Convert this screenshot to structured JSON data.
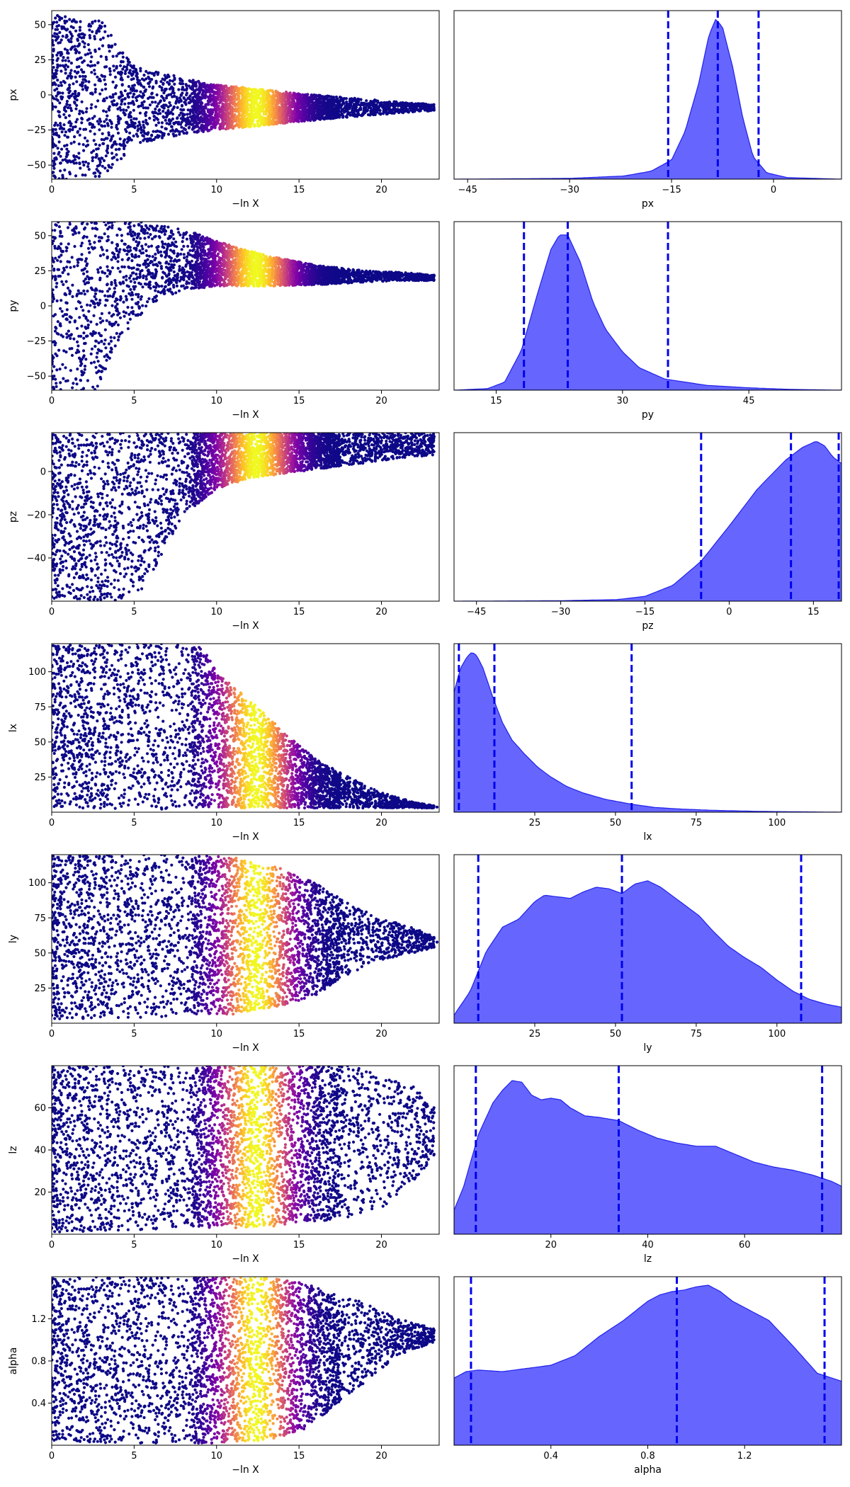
{
  "chart_data": [
    {
      "type": "scatter",
      "panel": "trace",
      "param": "px",
      "xlabel": "−ln X",
      "ylabel": "px",
      "xlim": [
        0,
        23.5
      ],
      "ylim": [
        -60,
        60
      ],
      "xticks": [
        0,
        5,
        10,
        15,
        20
      ],
      "yticks": [
        -50,
        -25,
        0,
        25,
        50
      ],
      "envelope": {
        "x": [
          0,
          3,
          5,
          8,
          10,
          12,
          15,
          18,
          21,
          23.5
        ],
        "half": [
          60,
          58,
          28,
          20,
          16,
          14,
          10,
          7,
          4,
          2
        ],
        "center": [
          -3,
          -5,
          -7,
          -8,
          -9,
          -9,
          -9,
          -9,
          -9,
          -9
        ]
      }
    },
    {
      "type": "area",
      "panel": "marginal",
      "param": "px",
      "xlabel": "px",
      "xlim": [
        -47,
        10
      ],
      "xticks": [
        -45,
        -30,
        -15,
        0
      ],
      "quantiles": [
        -15.5,
        -8.2,
        -2.2
      ],
      "density": {
        "x": [
          -47,
          -30,
          -22,
          -18,
          -15,
          -13,
          -11,
          -9.5,
          -8.5,
          -7.5,
          -6,
          -4.5,
          -3,
          -1,
          2,
          10
        ],
        "y": [
          0,
          0.005,
          0.02,
          0.05,
          0.12,
          0.3,
          0.6,
          0.9,
          1.0,
          0.95,
          0.7,
          0.38,
          0.14,
          0.04,
          0.01,
          0
        ]
      }
    },
    {
      "type": "scatter",
      "panel": "trace",
      "param": "py",
      "xlabel": "−ln X",
      "ylabel": "py",
      "xlim": [
        0,
        23.5
      ],
      "ylim": [
        -60,
        60
      ],
      "xticks": [
        0,
        5,
        10,
        15,
        20
      ],
      "yticks": [
        -50,
        -25,
        0,
        25,
        50
      ],
      "envelope": {
        "x": [
          0,
          2,
          4,
          6,
          8,
          10,
          13,
          16,
          19,
          21,
          23.5
        ],
        "half": [
          110,
          80,
          45,
          28,
          22,
          16,
          11,
          7,
          4,
          3,
          2
        ],
        "center": [
          -5,
          0,
          20,
          30,
          33,
          30,
          25,
          22,
          21,
          21,
          20
        ]
      }
    },
    {
      "type": "area",
      "panel": "marginal",
      "param": "py",
      "xlabel": "py",
      "xlim": [
        10,
        56
      ],
      "xticks": [
        15,
        30,
        45
      ],
      "quantiles": [
        18.3,
        23.5,
        35.4
      ],
      "density": {
        "x": [
          10,
          14,
          16,
          18,
          20,
          21.5,
          22.5,
          23.5,
          25,
          26.5,
          28,
          30,
          32,
          35,
          40,
          45,
          50,
          56
        ],
        "y": [
          0,
          0.01,
          0.05,
          0.25,
          0.62,
          0.88,
          0.97,
          0.97,
          0.8,
          0.55,
          0.38,
          0.24,
          0.14,
          0.07,
          0.03,
          0.015,
          0.005,
          0
        ]
      }
    },
    {
      "type": "scatter",
      "panel": "trace",
      "param": "pz",
      "xlabel": "−ln X",
      "ylabel": "pz",
      "xlim": [
        0,
        23.5
      ],
      "ylim": [
        -60,
        18
      ],
      "xticks": [
        0,
        5,
        10,
        15,
        20
      ],
      "yticks": [
        -40,
        -20,
        0
      ],
      "envelope": {
        "x": [
          0,
          5,
          6,
          8,
          10,
          12,
          15,
          18,
          21,
          23.5
        ],
        "lower": [
          -60,
          -60,
          -48,
          -20,
          -8,
          -3,
          0,
          3,
          6,
          8
        ],
        "upper": [
          18,
          18,
          18,
          18,
          18,
          18,
          18,
          18,
          18,
          18
        ]
      }
    },
    {
      "type": "area",
      "panel": "marginal",
      "param": "pz",
      "xlabel": "pz",
      "xlim": [
        -49,
        20
      ],
      "xticks": [
        -45,
        -30,
        -15,
        0,
        15
      ],
      "quantiles": [
        -5,
        11,
        19.5
      ],
      "density": {
        "x": [
          -49,
          -30,
          -20,
          -15,
          -10,
          -5,
          0,
          5,
          10,
          13,
          15.5,
          17,
          18.5,
          20
        ],
        "y": [
          0,
          0.003,
          0.01,
          0.03,
          0.1,
          0.25,
          0.47,
          0.7,
          0.88,
          0.96,
          1.0,
          0.97,
          0.9,
          0.86
        ]
      }
    },
    {
      "type": "scatter",
      "panel": "trace",
      "param": "lx",
      "xlabel": "−ln X",
      "ylabel": "lx",
      "xlim": [
        0,
        23.5
      ],
      "ylim": [
        0,
        120
      ],
      "xticks": [
        0,
        5,
        10,
        15,
        20
      ],
      "yticks": [
        25,
        50,
        75,
        100
      ],
      "envelope": {
        "x": [
          0,
          5,
          7,
          9,
          10.5,
          12,
          14,
          16,
          18,
          20,
          22,
          23.5
        ],
        "lower": [
          2,
          2,
          2,
          2,
          3,
          3,
          3,
          3,
          3,
          3,
          3,
          3
        ],
        "upper": [
          120,
          120,
          120,
          118,
          95,
          80,
          58,
          38,
          25,
          14,
          7,
          4
        ]
      }
    },
    {
      "type": "area",
      "panel": "marginal",
      "param": "lx",
      "xlabel": "lx",
      "xlim": [
        0,
        120
      ],
      "xticks": [
        25,
        50,
        75,
        100
      ],
      "quantiles": [
        1.5,
        12.5,
        55
      ],
      "density": {
        "x": [
          0,
          2,
          4,
          5.5,
          7,
          9,
          12,
          15,
          18,
          22,
          26,
          30,
          35,
          40,
          47,
          55,
          62,
          70,
          80,
          95,
          120
        ],
        "y": [
          0.75,
          0.9,
          0.97,
          1.0,
          0.98,
          0.9,
          0.72,
          0.56,
          0.45,
          0.36,
          0.28,
          0.22,
          0.16,
          0.12,
          0.08,
          0.05,
          0.03,
          0.02,
          0.012,
          0.005,
          0.0
        ]
      }
    },
    {
      "type": "scatter",
      "panel": "trace",
      "param": "ly",
      "xlabel": "−ln X",
      "ylabel": "ly",
      "xlim": [
        0,
        23.5
      ],
      "ylim": [
        0,
        120
      ],
      "xticks": [
        0,
        5,
        10,
        15,
        20
      ],
      "yticks": [
        25,
        50,
        75,
        100
      ],
      "envelope": {
        "x": [
          0,
          5,
          8,
          11,
          14,
          16,
          18,
          20,
          22,
          23.5
        ],
        "lower": [
          3,
          4,
          5,
          6,
          12,
          20,
          35,
          45,
          50,
          55
        ],
        "upper": [
          120,
          120,
          120,
          118,
          110,
          100,
          85,
          75,
          68,
          60
        ]
      }
    },
    {
      "type": "area",
      "panel": "marginal",
      "param": "ly",
      "xlabel": "ly",
      "xlim": [
        0,
        120
      ],
      "xticks": [
        25,
        50,
        75,
        100
      ],
      "quantiles": [
        7.5,
        52,
        107.5
      ],
      "density": {
        "x": [
          0,
          5,
          10,
          15,
          20,
          25,
          28,
          32,
          36,
          40,
          44,
          48,
          52,
          56,
          60,
          64,
          68,
          72,
          76,
          80,
          85,
          90,
          95,
          100,
          105,
          110,
          115,
          120
        ],
        "y": [
          0.05,
          0.2,
          0.45,
          0.6,
          0.65,
          0.76,
          0.8,
          0.79,
          0.78,
          0.82,
          0.85,
          0.84,
          0.81,
          0.87,
          0.89,
          0.85,
          0.79,
          0.73,
          0.67,
          0.58,
          0.48,
          0.41,
          0.35,
          0.27,
          0.2,
          0.15,
          0.12,
          0.1
        ]
      }
    },
    {
      "type": "scatter",
      "panel": "trace",
      "param": "lz",
      "xlabel": "−ln X",
      "ylabel": "lz",
      "xlim": [
        0,
        23.5
      ],
      "ylim": [
        0,
        80
      ],
      "xticks": [
        0,
        5,
        10,
        15,
        20
      ],
      "yticks": [
        20,
        40,
        60
      ],
      "envelope": {
        "x": [
          0,
          5,
          8,
          11,
          14,
          16,
          18,
          20,
          22,
          23.5
        ],
        "lower": [
          1,
          2,
          3,
          3,
          4,
          6,
          8,
          12,
          25,
          40
        ],
        "upper": [
          80,
          80,
          80,
          80,
          80,
          80,
          80,
          76,
          70,
          60
        ]
      }
    },
    {
      "type": "area",
      "panel": "marginal",
      "param": "lz",
      "xlabel": "lz",
      "xlim": [
        0,
        80
      ],
      "xticks": [
        20,
        40,
        60
      ],
      "quantiles": [
        4.5,
        34,
        76
      ],
      "density": {
        "x": [
          0,
          2,
          5,
          8,
          10,
          12,
          14,
          16,
          18,
          20,
          22,
          24,
          27,
          30,
          34,
          38,
          42,
          46,
          50,
          54,
          58,
          62,
          66,
          70,
          74,
          78,
          80
        ],
        "y": [
          0.15,
          0.3,
          0.62,
          0.82,
          0.9,
          0.96,
          0.95,
          0.87,
          0.84,
          0.85,
          0.84,
          0.79,
          0.74,
          0.73,
          0.71,
          0.65,
          0.6,
          0.57,
          0.55,
          0.55,
          0.5,
          0.45,
          0.42,
          0.4,
          0.37,
          0.33,
          0.3
        ]
      }
    },
    {
      "type": "scatter",
      "panel": "trace",
      "param": "alpha",
      "xlabel": "−ln X",
      "ylabel": "alpha",
      "xlim": [
        0,
        23.5
      ],
      "ylim": [
        0,
        1.6
      ],
      "xticks": [
        0,
        5,
        10,
        15,
        20
      ],
      "yticks": [
        0.4,
        0.8,
        1.2
      ],
      "envelope": {
        "x": [
          0,
          5,
          9,
          11,
          13,
          15,
          17,
          19,
          21,
          23.5
        ],
        "lower": [
          0.02,
          0.02,
          0.02,
          0.02,
          0.05,
          0.12,
          0.35,
          0.6,
          0.85,
          1.0
        ],
        "upper": [
          1.6,
          1.6,
          1.6,
          1.6,
          1.6,
          1.55,
          1.45,
          1.35,
          1.2,
          1.1
        ]
      }
    },
    {
      "type": "area",
      "panel": "marginal",
      "param": "alpha",
      "xlabel": "alpha",
      "xlim": [
        0,
        1.6
      ],
      "xticks": [
        0.4,
        0.8,
        1.2
      ],
      "quantiles": [
        0.07,
        0.92,
        1.53
      ],
      "density": {
        "x": [
          0,
          0.05,
          0.1,
          0.2,
          0.3,
          0.4,
          0.5,
          0.6,
          0.7,
          0.8,
          0.85,
          0.9,
          0.95,
          1.0,
          1.05,
          1.1,
          1.15,
          1.2,
          1.3,
          1.4,
          1.5,
          1.6
        ],
        "y": [
          0.42,
          0.46,
          0.47,
          0.46,
          0.48,
          0.5,
          0.56,
          0.68,
          0.78,
          0.9,
          0.94,
          0.96,
          0.97,
          0.99,
          1.0,
          0.96,
          0.9,
          0.86,
          0.78,
          0.62,
          0.45,
          0.4
        ]
      }
    }
  ]
}
